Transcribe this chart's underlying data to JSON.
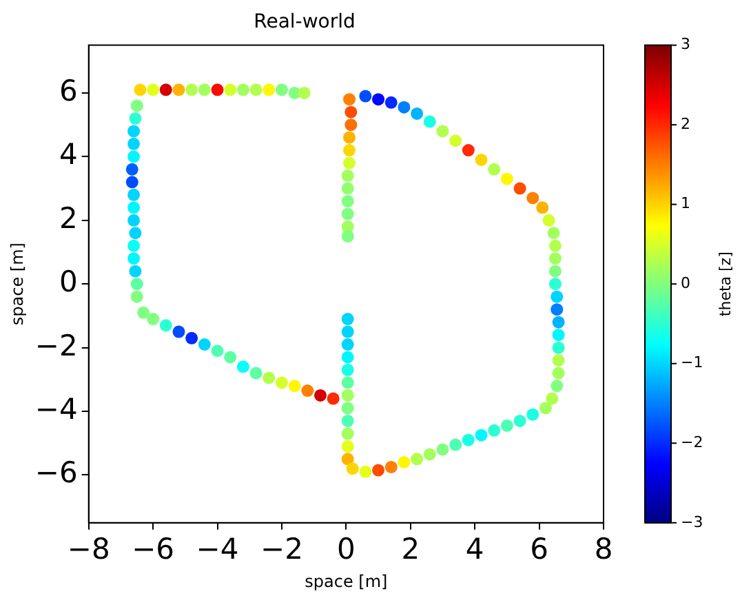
{
  "chart_data": {
    "type": "scatter",
    "title": "Real-world",
    "xlabel": "space [m]",
    "ylabel": "space [m]",
    "clabel": "theta [z]",
    "xlim": [
      -8,
      8
    ],
    "xticks": [
      -8,
      -6,
      -4,
      -2,
      0,
      2,
      4,
      6,
      8
    ],
    "ylim": [
      -7.5,
      7.5
    ],
    "yticks": [
      -6,
      -4,
      -2,
      0,
      2,
      4,
      6
    ],
    "clim": [
      -3,
      3
    ],
    "cticks": [
      -3,
      -2,
      -1,
      0,
      1,
      2,
      3
    ],
    "grid": false,
    "legend": false,
    "marker": "circle",
    "x": [
      -6.4,
      -6.0,
      -5.6,
      -5.2,
      -4.8,
      -4.4,
      -4.0,
      -3.6,
      -3.2,
      -2.8,
      -2.4,
      -2.0,
      -1.6,
      -1.3,
      -6.5,
      -6.55,
      -6.6,
      -6.6,
      -6.6,
      -6.65,
      -6.65,
      -6.6,
      -6.6,
      -6.6,
      -6.55,
      -6.6,
      -6.6,
      -6.55,
      -6.5,
      -6.5,
      -6.3,
      -6.0,
      -5.6,
      -5.2,
      -4.8,
      -4.4,
      -4.0,
      -3.6,
      -3.2,
      -2.8,
      -2.4,
      -2.0,
      -1.6,
      -1.2,
      -0.8,
      -0.4,
      0.05,
      0.05,
      0.05,
      0.05,
      0.05,
      0.05,
      0.05,
      0.05,
      0.05,
      0.05,
      0.05,
      0.05,
      0.2,
      0.6,
      1.0,
      1.4,
      1.8,
      2.2,
      2.6,
      3.0,
      3.4,
      3.8,
      4.2,
      4.6,
      5.0,
      5.4,
      5.8,
      6.2,
      6.4,
      6.55,
      6.6,
      6.6,
      6.6,
      6.6,
      6.6,
      6.55,
      6.55,
      6.5,
      6.5,
      6.5,
      6.5,
      6.45,
      6.3,
      6.1,
      5.8,
      5.4,
      5.0,
      4.6,
      4.2,
      3.8,
      3.4,
      3.0,
      2.6,
      2.2,
      1.8,
      1.4,
      1.0,
      0.6,
      0.1,
      0.15,
      0.15,
      0.1,
      0.1,
      0.1,
      0.05,
      0.05,
      0.05,
      0.05,
      0.05,
      0.05
    ],
    "values": [
      6.1,
      6.1,
      6.1,
      6.1,
      6.1,
      6.1,
      6.1,
      6.1,
      6.1,
      6.1,
      6.1,
      6.1,
      6.0,
      6.0,
      5.6,
      5.2,
      4.8,
      4.4,
      4.0,
      3.6,
      3.2,
      2.8,
      2.4,
      2.0,
      1.6,
      1.2,
      0.8,
      0.4,
      0.0,
      -0.4,
      -0.9,
      -1.1,
      -1.3,
      -1.5,
      -1.7,
      -1.9,
      -2.1,
      -2.3,
      -2.6,
      -2.8,
      -2.95,
      -3.1,
      -3.2,
      -3.35,
      -3.5,
      -3.6,
      -1.1,
      -1.5,
      -1.9,
      -2.3,
      -2.7,
      -3.1,
      -3.5,
      -3.9,
      -4.3,
      -4.7,
      -5.1,
      -5.5,
      -5.8,
      -5.9,
      -5.85,
      -5.75,
      -5.6,
      -5.5,
      -5.35,
      -5.2,
      -5.05,
      -4.9,
      -4.75,
      -4.6,
      -4.45,
      -4.3,
      -4.1,
      -3.9,
      -3.6,
      -3.2,
      -2.8,
      -2.4,
      -2.0,
      -1.6,
      -1.2,
      -0.8,
      -0.4,
      0,
      0.4,
      0.8,
      1.2,
      1.6,
      2.0,
      2.4,
      2.7,
      3.0,
      3.3,
      3.6,
      3.9,
      4.2,
      4.5,
      4.8,
      5.1,
      5.35,
      5.55,
      5.7,
      5.8,
      5.9,
      5.8,
      5.4,
      5.0,
      4.6,
      4.2,
      3.8,
      3.4,
      3.0,
      2.6,
      2.2,
      1.8,
      1.5
    ],
    "cvalues": [
      1.0,
      0.6,
      2.5,
      1.2,
      0.3,
      0.2,
      2.2,
      0.5,
      0.2,
      0.3,
      0.8,
      0.0,
      0.0,
      0.3,
      0.0,
      -0.5,
      -1.0,
      -1.0,
      -0.8,
      -1.7,
      -1.8,
      -1.0,
      -0.8,
      -1.0,
      -1.0,
      -0.7,
      -0.8,
      -1.0,
      -0.2,
      0.0,
      0,
      0,
      -0.5,
      -1.8,
      -2.0,
      -1.0,
      -0.3,
      -0.2,
      -0.7,
      -0.2,
      0.3,
      0.5,
      0.8,
      1.5,
      2.5,
      2.0,
      -1.0,
      -1.0,
      -1.0,
      -0.8,
      -0.6,
      -0.2,
      0.2,
      0,
      -0.3,
      0.2,
      0.6,
      1.2,
      1.0,
      0.6,
      1.8,
      1.5,
      0.8,
      0.3,
      0.2,
      0,
      -0.3,
      -0.6,
      -0.8,
      -0.5,
      -0.3,
      -0.5,
      -0.6,
      0.2,
      0.3,
      0,
      0.2,
      0.3,
      -0.5,
      -0.8,
      -1.2,
      -1.5,
      -1.0,
      -0.5,
      0.0,
      0.2,
      0.3,
      0.2,
      0.5,
      1.2,
      1.5,
      1.8,
      0.8,
      0.3,
      1.0,
      2.0,
      0.5,
      0.3,
      -0.6,
      -1.2,
      -1.5,
      -2.0,
      -2.2,
      -1.8,
      1.5,
      1.8,
      1.6,
      1.2,
      1.0,
      0.5,
      0.2,
      0.1,
      0.0,
      0.0,
      0.2,
      0.0
    ]
  }
}
